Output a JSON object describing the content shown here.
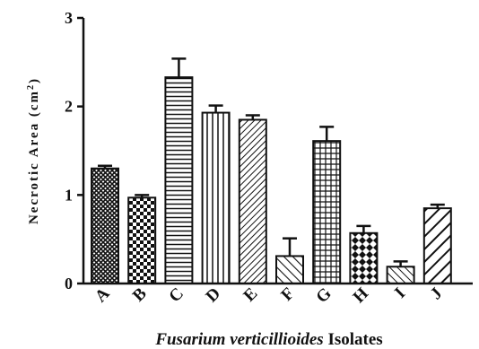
{
  "chart_data": {
    "type": "bar",
    "categories": [
      "A",
      "B",
      "C",
      "D",
      "E",
      "F",
      "G",
      "H",
      "I",
      "J"
    ],
    "values": [
      1.3,
      0.97,
      2.33,
      1.93,
      1.85,
      0.31,
      1.61,
      0.57,
      0.19,
      0.85
    ],
    "errors": [
      0.03,
      0.03,
      0.21,
      0.08,
      0.05,
      0.2,
      0.16,
      0.08,
      0.06,
      0.04
    ],
    "patterns": [
      "crosshatch-dense",
      "checker",
      "horizontal",
      "vertical",
      "diagonal-fine",
      "diagonal-wide",
      "grid",
      "diamond",
      "diagonal-back",
      "diagonal-bold"
    ],
    "ylabel": "Necrotic Area (cm²)",
    "ylabel_main": "Necrotic Area (cm",
    "ylabel_sup": "2",
    "ylabel_close": ")",
    "xlabel_italic": "Fusarium verticillioides",
    "xlabel_rest": " Isolates",
    "ylim": [
      0,
      3
    ],
    "yticks": [
      "0",
      "1",
      "2",
      "3"
    ],
    "grid": false,
    "bar_color": "#ffffff",
    "edge_color": "#111111"
  }
}
